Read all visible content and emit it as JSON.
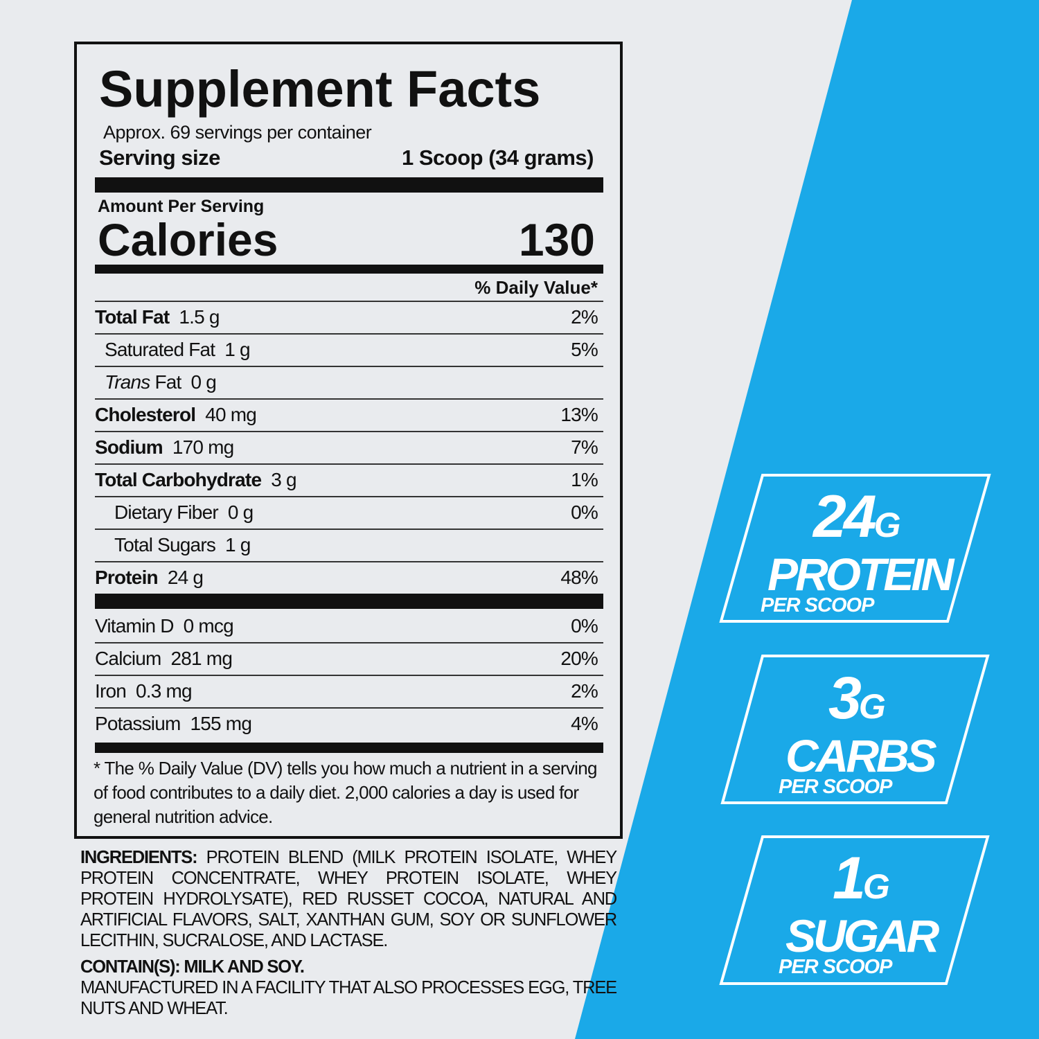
{
  "colors": {
    "background": "#e9ebee",
    "accent_blue": "#1aa9e8",
    "text": "#111111",
    "badge_text": "#ffffff"
  },
  "facts": {
    "title": "Supplement Facts",
    "servings": "Approx. 69 servings per container",
    "serving_size_label": "Serving size",
    "serving_size_value": "1 Scoop (34 grams)",
    "amount_per_serving": "Amount Per Serving",
    "calories_label": "Calories",
    "calories_value": "130",
    "dv_header": "% Daily Value*",
    "nutrients": [
      {
        "name": "Total Fat",
        "amount": "1.5 g",
        "dv": "2%"
      },
      {
        "name": "Saturated Fat",
        "amount": "1 g",
        "dv": "5%"
      },
      {
        "name": "Trans",
        "name_suffix": "Fat",
        "amount": "0 g",
        "dv": ""
      },
      {
        "name": "Cholesterol",
        "amount": "40 mg",
        "dv": "13%"
      },
      {
        "name": "Sodium",
        "amount": "170 mg",
        "dv": "7%"
      },
      {
        "name": "Total Carbohydrate",
        "amount": "3 g",
        "dv": "1%"
      },
      {
        "name": "Dietary Fiber",
        "amount": "0 g",
        "dv": "0%"
      },
      {
        "name": "Total Sugars",
        "amount": "1 g",
        "dv": ""
      },
      {
        "name": "Protein",
        "amount": "24 g",
        "dv": "48%"
      }
    ],
    "vitamins": [
      {
        "name": "Vitamin D",
        "amount": "0 mcg",
        "dv": "0%"
      },
      {
        "name": "Calcium",
        "amount": "281 mg",
        "dv": "20%"
      },
      {
        "name": "Iron",
        "amount": "0.3 mg",
        "dv": "2%"
      },
      {
        "name": "Potassium",
        "amount": "155 mg",
        "dv": "4%"
      }
    ],
    "footnote": "* The % Daily Value (DV) tells you how much a nutrient in a serving of food contributes to a daily diet. 2,000 calories a day is used for general nutrition advice."
  },
  "ingredients": {
    "label": "INGREDIENTS:",
    "text": "PROTEIN BLEND (MILK PROTEIN ISOLATE, WHEY PROTEIN CONCENTRATE, WHEY PROTEIN ISOLATE, WHEY PROTEIN HYDROLYSATE), RED RUSSET COCOA, NATURAL AND ARTIFICIAL FLAVORS, SALT, XANTHAN GUM, SOY OR SUNFLOWER LECITHIN, SUCRALOSE, AND LACTASE.",
    "contains": "CONTAIN(S): MILK AND SOY.",
    "facility": "MANUFACTURED IN A FACILITY THAT ALSO PROCESSES EGG, TREE NUTS AND WHEAT."
  },
  "badges": [
    {
      "number": "24",
      "unit": "G",
      "word": "PROTEIN",
      "per": "PER SCOOP"
    },
    {
      "number": "3",
      "unit": "G",
      "word": "CARBS",
      "per": "PER SCOOP"
    },
    {
      "number": "1",
      "unit": "G",
      "word": "SUGAR",
      "per": "PER SCOOP"
    }
  ]
}
